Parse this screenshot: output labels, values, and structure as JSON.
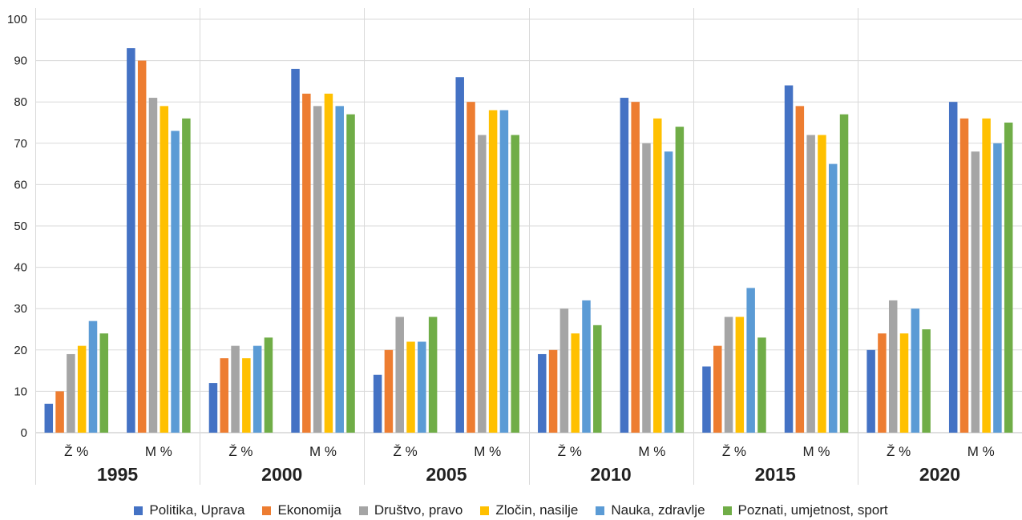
{
  "chart_data": {
    "type": "bar",
    "ylim": [
      0,
      100
    ],
    "yticks": [
      0,
      10,
      20,
      30,
      40,
      50,
      60,
      70,
      80,
      90,
      100
    ],
    "grid": true,
    "legend_placement": "bottom",
    "groups": [
      {
        "year": "1995",
        "categories": [
          "Ž %",
          "M %"
        ]
      },
      {
        "year": "2000",
        "categories": [
          "Ž %",
          "M %"
        ]
      },
      {
        "year": "2005",
        "categories": [
          "Ž %",
          "M %"
        ]
      },
      {
        "year": "2010",
        "categories": [
          "Ž %",
          "M %"
        ]
      },
      {
        "year": "2015",
        "categories": [
          "Ž %",
          "M %"
        ]
      },
      {
        "year": "2020",
        "categories": [
          "Ž %",
          "M %"
        ]
      }
    ],
    "series": [
      {
        "name": "Politika, Uprava",
        "color": "#4472C4",
        "values": [
          [
            7,
            93
          ],
          [
            12,
            88
          ],
          [
            14,
            86
          ],
          [
            19,
            81
          ],
          [
            16,
            84
          ],
          [
            20,
            80
          ]
        ]
      },
      {
        "name": "Ekonomija",
        "color": "#ED7D31",
        "values": [
          [
            10,
            90
          ],
          [
            18,
            82
          ],
          [
            20,
            80
          ],
          [
            20,
            80
          ],
          [
            21,
            79
          ],
          [
            24,
            76
          ]
        ]
      },
      {
        "name": "Društvo, pravo",
        "color": "#A5A5A5",
        "values": [
          [
            19,
            81
          ],
          [
            21,
            79
          ],
          [
            28,
            72
          ],
          [
            30,
            70
          ],
          [
            28,
            72
          ],
          [
            32,
            68
          ]
        ]
      },
      {
        "name": "Zločin, nasilje",
        "color": "#FFC000",
        "values": [
          [
            21,
            79
          ],
          [
            18,
            82
          ],
          [
            22,
            78
          ],
          [
            24,
            76
          ],
          [
            28,
            72
          ],
          [
            24,
            76
          ]
        ]
      },
      {
        "name": "Nauka, zdravlje",
        "color": "#5B9BD5",
        "values": [
          [
            27,
            73
          ],
          [
            21,
            79
          ],
          [
            22,
            78
          ],
          [
            32,
            68
          ],
          [
            35,
            65
          ],
          [
            30,
            70
          ]
        ]
      },
      {
        "name": "Poznati, umjetnost, sport",
        "color": "#70AD47",
        "values": [
          [
            24,
            76
          ],
          [
            23,
            77
          ],
          [
            28,
            72
          ],
          [
            26,
            74
          ],
          [
            23,
            77
          ],
          [
            25,
            75
          ]
        ]
      }
    ]
  }
}
